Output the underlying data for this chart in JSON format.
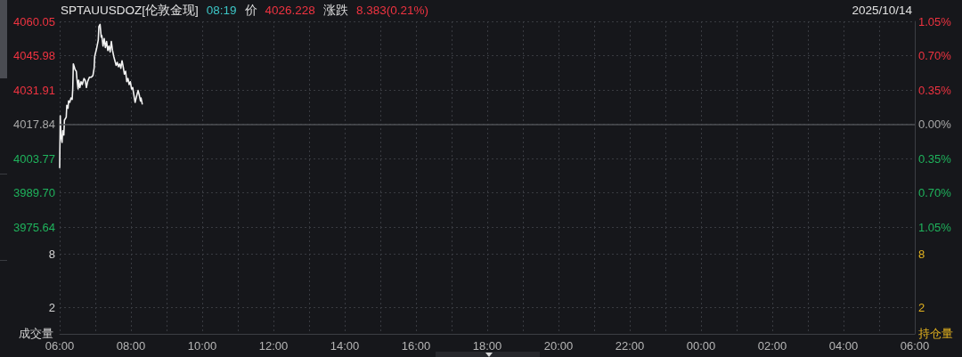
{
  "chart_data": [
    {
      "type": "line",
      "title": "SPTAUUSDOZ[伦敦金现]",
      "subtitle": "2025/10/14",
      "annotations": [
        "08:19",
        "价",
        "4026.228",
        "涨跌",
        "8.383(0.21%)"
      ],
      "x": [
        "2025-10-14T06:00",
        "2025-10-14T06:01",
        "2025-10-14T06:02",
        "2025-10-14T06:04",
        "2025-10-14T06:05",
        "2025-10-14T06:07",
        "2025-10-14T06:08",
        "2025-10-14T06:11",
        "2025-10-14T06:12",
        "2025-10-14T06:14",
        "2025-10-14T06:15",
        "2025-10-14T06:17",
        "2025-10-14T06:19",
        "2025-10-14T06:21",
        "2025-10-14T06:22",
        "2025-10-14T06:23",
        "2025-10-14T06:26",
        "2025-10-14T06:28",
        "2025-10-14T06:29",
        "2025-10-14T06:31",
        "2025-10-14T06:32",
        "2025-10-14T06:34",
        "2025-10-14T06:36",
        "2025-10-14T06:38",
        "2025-10-14T06:41",
        "2025-10-14T06:43",
        "2025-10-14T06:45",
        "2025-10-14T06:47",
        "2025-10-14T06:50",
        "2025-10-14T06:53",
        "2025-10-14T06:56",
        "2025-10-14T06:58",
        "2025-10-14T06:59",
        "2025-10-14T07:02",
        "2025-10-14T07:05",
        "2025-10-14T07:06",
        "2025-10-14T07:08",
        "2025-10-14T07:10",
        "2025-10-14T07:11",
        "2025-10-14T07:13",
        "2025-10-14T07:15",
        "2025-10-14T07:17",
        "2025-10-14T07:19",
        "2025-10-14T07:21",
        "2025-10-14T07:23",
        "2025-10-14T07:25",
        "2025-10-14T07:27",
        "2025-10-14T07:29",
        "2025-10-14T07:31",
        "2025-10-14T07:33",
        "2025-10-14T07:35",
        "2025-10-14T07:37",
        "2025-10-14T07:39",
        "2025-10-14T07:41",
        "2025-10-14T07:43",
        "2025-10-14T07:45",
        "2025-10-14T07:47",
        "2025-10-14T07:49",
        "2025-10-14T07:51",
        "2025-10-14T07:53",
        "2025-10-14T07:55",
        "2025-10-14T07:57",
        "2025-10-14T07:59",
        "2025-10-14T08:01",
        "2025-10-14T08:03",
        "2025-10-14T08:05",
        "2025-10-14T08:07",
        "2025-10-14T08:10",
        "2025-10-14T08:12",
        "2025-10-14T08:14",
        "2025-10-14T08:16",
        "2025-10-14T08:17",
        "2025-10-14T08:19"
      ],
      "series": [
        {
          "color": "#f2f2f2",
          "values": [
            4000.0,
            4021.3,
            4013.4,
            4010.4,
            4015.2,
            4013.4,
            4019.5,
            4020.7,
            4025.6,
            4024.4,
            4027.4,
            4026.8,
            4028.6,
            4028.0,
            4032.3,
            4042.6,
            4040.2,
            4039.6,
            4036.6,
            4032.3,
            4035.9,
            4032.9,
            4035.3,
            4034.1,
            4036.6,
            4035.9,
            4032.9,
            4035.3,
            4037.1,
            4037.1,
            4037.8,
            4040.8,
            4045.7,
            4048.7,
            4052.4,
            4057.9,
            4058.8,
            4053.6,
            4054.2,
            4049.9,
            4053.0,
            4049.3,
            4051.8,
            4048.1,
            4049.9,
            4047.5,
            4051.8,
            4048.1,
            4045.7,
            4043.9,
            4042.0,
            4043.2,
            4041.4,
            4042.6,
            4040.8,
            4043.9,
            4041.4,
            4038.4,
            4039.6,
            4035.3,
            4036.6,
            4034.1,
            4035.3,
            4032.3,
            4032.9,
            4029.8,
            4026.8,
            4029.8,
            4031.7,
            4029.8,
            4027.4,
            4028.6,
            4026.2
          ]
        }
      ],
      "xlim": [
        "2025-10-14T06:00",
        "2025-10-15T06:00"
      ],
      "xticks": [
        {
          "value": "2025-10-14T06:00",
          "label": null
        },
        {
          "value": "2025-10-14T07:00",
          "label": null
        },
        {
          "value": "2025-10-14T08:00",
          "label": null
        },
        {
          "value": "2025-10-14T09:00",
          "label": null
        },
        {
          "value": "2025-10-14T10:00",
          "label": null
        },
        {
          "value": "2025-10-14T11:00",
          "label": null
        },
        {
          "value": "2025-10-14T12:00",
          "label": null
        },
        {
          "value": "2025-10-14T13:00",
          "label": null
        },
        {
          "value": "2025-10-14T14:00",
          "label": null
        },
        {
          "value": "2025-10-14T15:00",
          "label": null
        },
        {
          "value": "2025-10-14T16:00",
          "label": null
        },
        {
          "value": "2025-10-14T17:00",
          "label": null
        },
        {
          "value": "2025-10-14T18:00",
          "label": null
        },
        {
          "value": "2025-10-14T19:00",
          "label": null
        },
        {
          "value": "2025-10-14T20:00",
          "label": null
        },
        {
          "value": "2025-10-14T21:00",
          "label": null
        },
        {
          "value": "2025-10-14T22:00",
          "label": null
        },
        {
          "value": "2025-10-14T23:00",
          "label": null
        },
        {
          "value": "2025-10-15T00:00",
          "label": null
        },
        {
          "value": "2025-10-15T01:00",
          "label": null
        },
        {
          "value": "2025-10-15T02:00",
          "label": null
        },
        {
          "value": "2025-10-15T03:00",
          "label": null
        },
        {
          "value": "2025-10-15T04:00",
          "label": null
        },
        {
          "value": "2025-10-15T05:00",
          "label": null
        },
        {
          "value": "2025-10-15T06:00",
          "label": null
        }
      ],
      "ylim": [
        3975.64,
        4060.05
      ],
      "yticks": [
        4060.05,
        4045.98,
        4031.91,
        4017.84,
        4003.77,
        {
          "value": 3989.7,
          "label": "3989.70"
        },
        3975.64
      ],
      "y2lim": [
        -1.05,
        1.05
      ],
      "y2ticks": [
        {
          "value": 1.05,
          "label": "1.05%"
        },
        {
          "value": 0.7,
          "label": "0.70%"
        },
        {
          "value": 0.35,
          "label": "0.35%"
        },
        {
          "value": 0,
          "label": "0.00%"
        },
        {
          "value": -0.35,
          "label": "0.35%"
        },
        {
          "value": -0.7,
          "label": "0.70%"
        },
        {
          "value": -1.05,
          "label": "1.05%"
        }
      ],
      "ref_lines": [
        {
          "axis": "y",
          "value": 4017.84,
          "color": "#4e5055"
        }
      ],
      "grid": true,
      "marker": "none",
      "line_style": "solid",
      "tick_labels": "y"
    },
    {
      "type": "bar",
      "ylabel": "成交量",
      "y2label": "持仓量",
      "xlim": [
        "2025-10-14T06:00",
        "2025-10-15T06:00"
      ],
      "xticks": [
        {
          "value": "2025-10-14T06:00",
          "label": "06:00"
        },
        {
          "value": "2025-10-14T07:00",
          "label": null
        },
        {
          "value": "2025-10-14T08:00",
          "label": "08:00"
        },
        {
          "value": "2025-10-14T09:00",
          "label": null
        },
        {
          "value": "2025-10-14T10:00",
          "label": "10:00"
        },
        {
          "value": "2025-10-14T11:00",
          "label": null
        },
        {
          "value": "2025-10-14T12:00",
          "label": "12:00"
        },
        {
          "value": "2025-10-14T13:00",
          "label": null
        },
        {
          "value": "2025-10-14T14:00",
          "label": "14:00"
        },
        {
          "value": "2025-10-14T15:00",
          "label": null
        },
        {
          "value": "2025-10-14T16:00",
          "label": "16:00"
        },
        {
          "value": "2025-10-14T17:00",
          "label": null
        },
        {
          "value": "2025-10-14T18:00",
          "label": "18:00"
        },
        {
          "value": "2025-10-14T19:00",
          "label": null
        },
        {
          "value": "2025-10-14T20:00",
          "label": "20:00"
        },
        {
          "value": "2025-10-14T21:00",
          "label": null
        },
        {
          "value": "2025-10-14T22:00",
          "label": "22:00"
        },
        {
          "value": "2025-10-14T23:00",
          "label": null
        },
        {
          "value": "2025-10-15T00:00",
          "label": "00:00"
        },
        {
          "value": "2025-10-15T01:00",
          "label": null
        },
        {
          "value": "2025-10-15T02:00",
          "label": "02:00"
        },
        {
          "value": "2025-10-15T03:00",
          "label": null
        },
        {
          "value": "2025-10-15T04:00",
          "label": "04:00"
        },
        {
          "value": "2025-10-15T05:00",
          "label": null
        },
        {
          "value": "2025-10-15T06:00",
          "label": "06:00"
        }
      ],
      "ylim": [
        -1,
        11
      ],
      "yticks": [
        8,
        2
      ],
      "y2lim": [
        -1,
        11
      ],
      "y2ticks": [
        8,
        2
      ],
      "grid": true
    }
  ]
}
